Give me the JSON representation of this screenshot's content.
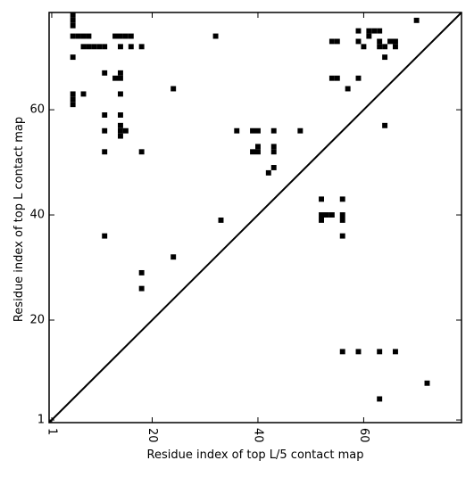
{
  "chart_data": {
    "type": "scatter",
    "xlabel": "Residue index of top L/5 contact map",
    "ylabel": "Residue index of top L contact map",
    "xlim": [
      0.5,
      78.5
    ],
    "ylim": [
      0.5,
      78.5
    ],
    "xticks": [
      1,
      20,
      40,
      60
    ],
    "yticks": [
      1,
      20,
      40,
      60
    ],
    "marker": "square",
    "diagonal": true,
    "series": [
      {
        "color": "#000000",
        "x": [
          5,
          5,
          5,
          5,
          5,
          5,
          5,
          5,
          6,
          7,
          8,
          13,
          14,
          15,
          16,
          32,
          7,
          8,
          9,
          10,
          11,
          14,
          16,
          18,
          7,
          11,
          14,
          13,
          14,
          24,
          14,
          11,
          14,
          14,
          11,
          14,
          15,
          36,
          39,
          40,
          43,
          48,
          14,
          40,
          43,
          11,
          18,
          39,
          40,
          43,
          43,
          42,
          52,
          56,
          52,
          53,
          54,
          56,
          52,
          56,
          33,
          11,
          56,
          24,
          18,
          18,
          70,
          59,
          61,
          62,
          63,
          61,
          54,
          55,
          59,
          63,
          65,
          66,
          60,
          63,
          64,
          66,
          64,
          54,
          55,
          59,
          57,
          64,
          56,
          59,
          63,
          66,
          72,
          63
        ],
        "y": [
          78,
          77,
          76,
          74,
          70,
          63,
          62,
          61,
          74,
          74,
          74,
          74,
          74,
          74,
          74,
          74,
          72,
          72,
          72,
          72,
          72,
          72,
          72,
          72,
          63,
          67,
          67,
          66,
          66,
          64,
          63,
          59,
          59,
          57,
          56,
          56,
          56,
          56,
          56,
          56,
          56,
          56,
          55,
          53,
          53,
          52,
          52,
          52,
          52,
          52,
          49,
          48,
          43,
          43,
          40,
          40,
          40,
          40,
          39,
          39,
          39,
          36,
          36,
          32,
          29,
          26,
          77,
          75,
          75,
          75,
          75,
          74,
          73,
          73,
          73,
          73,
          73,
          73,
          72,
          72,
          72,
          72,
          70,
          66,
          66,
          66,
          64,
          57,
          14,
          14,
          14,
          14,
          8,
          5
        ]
      }
    ]
  }
}
